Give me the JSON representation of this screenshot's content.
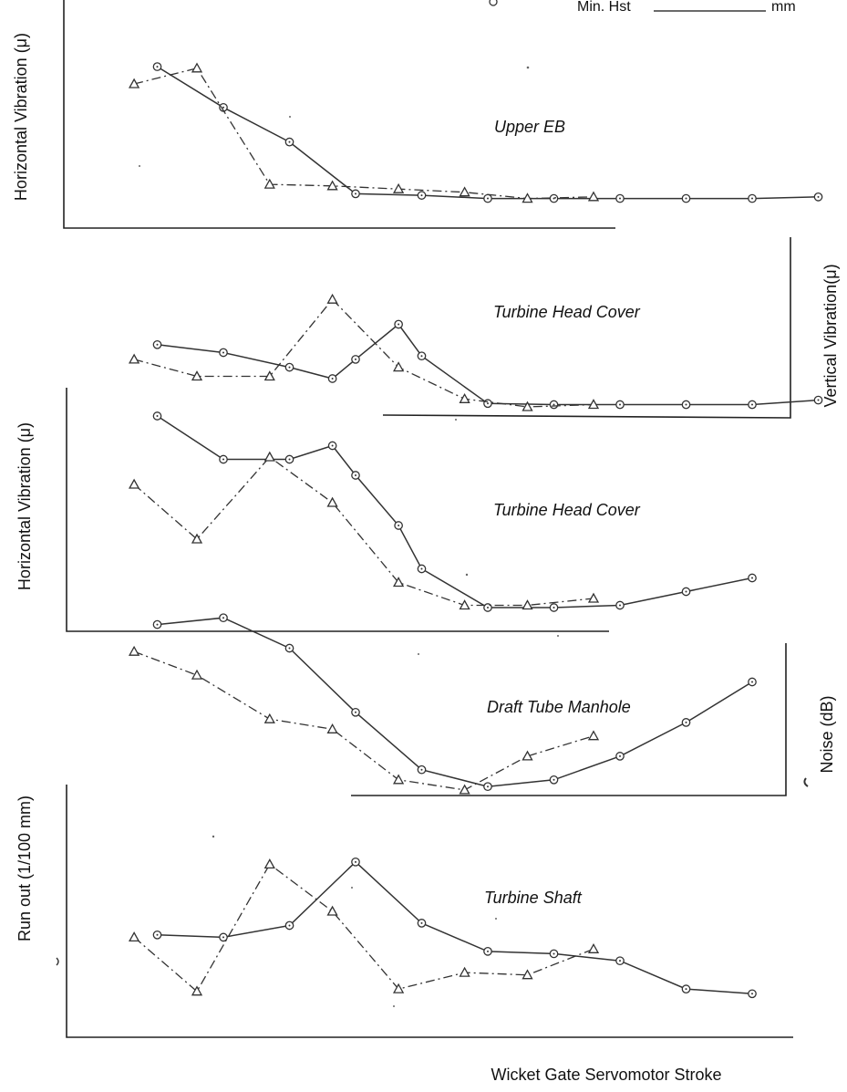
{
  "chart_data": [
    {
      "type": "line",
      "title": "Upper EB",
      "ylabel": "Horizontal Vibration (μ)",
      "series": [
        {
          "marker": "circle",
          "values": [
            {
              "x": 1,
              "y": 8.6
            },
            {
              "x": 2,
              "y": 6.0
            },
            {
              "x": 3,
              "y": 3.8
            },
            {
              "x": 4,
              "y": 0.5
            },
            {
              "x": 5,
              "y": 0.4
            },
            {
              "x": 6,
              "y": 0.2
            },
            {
              "x": 7,
              "y": 0.2
            },
            {
              "x": 8,
              "y": 0.2
            },
            {
              "x": 9,
              "y": 0.2
            },
            {
              "x": 10,
              "y": 0.2
            },
            {
              "x": 11,
              "y": 0.3
            }
          ]
        },
        {
          "marker": "triangle",
          "values": [
            {
              "x": 0.65,
              "y": 7.5
            },
            {
              "x": 1.6,
              "y": 8.5
            },
            {
              "x": 2.7,
              "y": 1.1
            },
            {
              "x": 3.65,
              "y": 1.0
            },
            {
              "x": 4.65,
              "y": 0.8
            },
            {
              "x": 5.65,
              "y": 0.6
            },
            {
              "x": 6.6,
              "y": 0.2
            },
            {
              "x": 7.6,
              "y": 0.3
            }
          ]
        }
      ]
    },
    {
      "type": "line",
      "title": "Turbine Head Cover",
      "ylabel": "Vertical Vibration(μ)",
      "series": [
        {
          "marker": "circle",
          "values": [
            {
              "x": 1,
              "y": 5.5
            },
            {
              "x": 2,
              "y": 4.8
            },
            {
              "x": 3,
              "y": 3.5
            },
            {
              "x": 3.65,
              "y": 2.5
            },
            {
              "x": 4,
              "y": 4.2
            },
            {
              "x": 4.65,
              "y": 7.3
            },
            {
              "x": 5,
              "y": 4.5
            },
            {
              "x": 6,
              "y": 0.3
            },
            {
              "x": 7,
              "y": 0.2
            },
            {
              "x": 8,
              "y": 0.2
            },
            {
              "x": 9,
              "y": 0.2
            },
            {
              "x": 10,
              "y": 0.2
            },
            {
              "x": 11,
              "y": 0.6
            }
          ]
        },
        {
          "marker": "triangle",
          "values": [
            {
              "x": 0.65,
              "y": 4.2
            },
            {
              "x": 1.6,
              "y": 2.7
            },
            {
              "x": 2.7,
              "y": 2.7
            },
            {
              "x": 3.65,
              "y": 9.5
            },
            {
              "x": 4.65,
              "y": 3.5
            },
            {
              "x": 5.65,
              "y": 0.7
            },
            {
              "x": 6.6,
              "y": 0.0
            },
            {
              "x": 7.6,
              "y": 0.2
            }
          ]
        }
      ]
    },
    {
      "type": "line",
      "title": "Turbine Head Cover",
      "ylabel": "Horizontal Vibration (μ)",
      "series": [
        {
          "marker": "circle",
          "values": [
            {
              "x": 1,
              "y": 8.4
            },
            {
              "x": 2,
              "y": 6.5
            },
            {
              "x": 3,
              "y": 6.5
            },
            {
              "x": 3.65,
              "y": 7.1
            },
            {
              "x": 4,
              "y": 5.8
            },
            {
              "x": 4.65,
              "y": 3.6
            },
            {
              "x": 5,
              "y": 1.7
            },
            {
              "x": 6,
              "y": 0.0
            },
            {
              "x": 7,
              "y": 0.0
            },
            {
              "x": 8,
              "y": 0.1
            },
            {
              "x": 9,
              "y": 0.7
            },
            {
              "x": 10,
              "y": 1.3
            }
          ]
        },
        {
          "marker": "triangle",
          "values": [
            {
              "x": 0.65,
              "y": 5.4
            },
            {
              "x": 1.6,
              "y": 3.0
            },
            {
              "x": 2.7,
              "y": 6.6
            },
            {
              "x": 3.65,
              "y": 4.6
            },
            {
              "x": 4.65,
              "y": 1.1
            },
            {
              "x": 5.65,
              "y": 0.1
            },
            {
              "x": 6.6,
              "y": 0.1
            },
            {
              "x": 7.6,
              "y": 0.4
            }
          ]
        }
      ]
    },
    {
      "type": "line",
      "title": "Draft Tube Manhole",
      "ylabel": "Noise (dB)",
      "series": [
        {
          "marker": "circle",
          "values": [
            {
              "x": 1,
              "y": 8.2
            },
            {
              "x": 2,
              "y": 8.4
            },
            {
              "x": 3,
              "y": 7.5
            },
            {
              "x": 4,
              "y": 5.6
            },
            {
              "x": 5,
              "y": 3.9
            },
            {
              "x": 6,
              "y": 3.4
            },
            {
              "x": 7,
              "y": 3.6
            },
            {
              "x": 8,
              "y": 4.3
            },
            {
              "x": 9,
              "y": 5.3
            },
            {
              "x": 10,
              "y": 6.5
            }
          ]
        },
        {
          "marker": "triangle",
          "values": [
            {
              "x": 0.65,
              "y": 7.4
            },
            {
              "x": 1.6,
              "y": 6.7
            },
            {
              "x": 2.7,
              "y": 5.4
            },
            {
              "x": 3.65,
              "y": 5.1
            },
            {
              "x": 4.65,
              "y": 3.6
            },
            {
              "x": 5.65,
              "y": 3.3
            },
            {
              "x": 6.6,
              "y": 4.3
            },
            {
              "x": 7.6,
              "y": 4.9
            }
          ]
        }
      ]
    },
    {
      "type": "line",
      "title": "Turbine Shaft",
      "ylabel": "Run out  (1/100 mm)",
      "xlabel": "Wicket Gate Servomotor Stroke",
      "series": [
        {
          "marker": "circle",
          "values": [
            {
              "x": 1,
              "y": 4.0
            },
            {
              "x": 2,
              "y": 3.9
            },
            {
              "x": 3,
              "y": 4.4
            },
            {
              "x": 4,
              "y": 7.1
            },
            {
              "x": 5,
              "y": 4.5
            },
            {
              "x": 6,
              "y": 3.3
            },
            {
              "x": 7,
              "y": 3.2
            },
            {
              "x": 8,
              "y": 2.9
            },
            {
              "x": 9,
              "y": 1.7
            },
            {
              "x": 10,
              "y": 1.5
            }
          ]
        },
        {
          "marker": "triangle",
          "values": [
            {
              "x": 0.65,
              "y": 3.9
            },
            {
              "x": 1.6,
              "y": 1.6
            },
            {
              "x": 2.7,
              "y": 7.0
            },
            {
              "x": 3.65,
              "y": 5.0
            },
            {
              "x": 4.65,
              "y": 1.7
            },
            {
              "x": 5.65,
              "y": 2.4
            },
            {
              "x": 6.6,
              "y": 2.3
            },
            {
              "x": 7.6,
              "y": 3.4
            }
          ]
        }
      ]
    }
  ],
  "header_note": {
    "label": "Min. Hst",
    "unit": "mm"
  }
}
